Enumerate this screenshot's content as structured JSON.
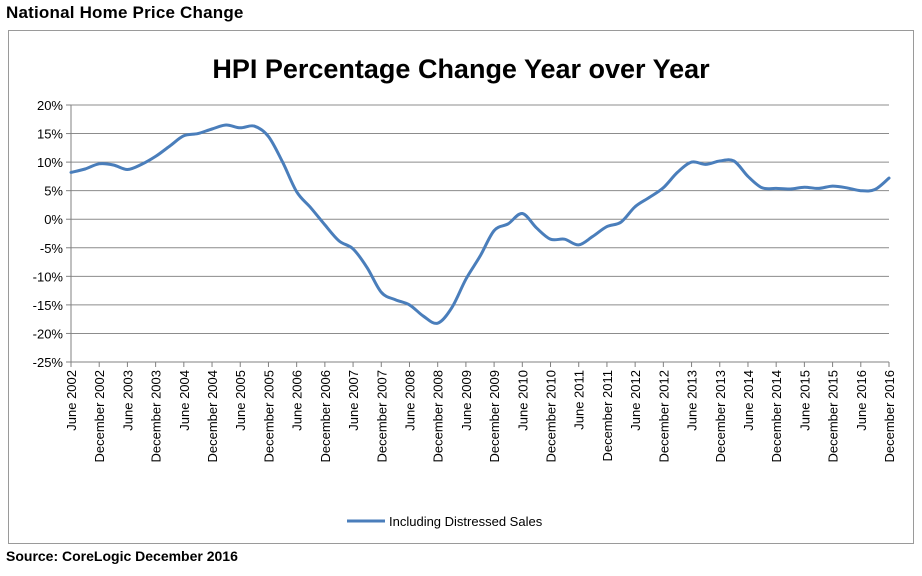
{
  "page": {
    "heading": "National  Home  Price  Change",
    "source": "Source: CoreLogic December 2016"
  },
  "colors": {
    "series": "#4a7ebb",
    "grid": "#8c8c8c",
    "axis": "#808080"
  },
  "chart_data": {
    "type": "line",
    "title": "HPI Percentage Change Year over Year",
    "xlabel": "",
    "ylabel": "",
    "ylim": [
      -25,
      20
    ],
    "ytick_step": 5,
    "ytick_labels": [
      "20%",
      "15%",
      "10%",
      "5%",
      "0%",
      "-5%",
      "-10%",
      "-15%",
      "-20%",
      "-25%"
    ],
    "grid": "horizontal",
    "legend_position": "bottom",
    "x_start": "2002-06",
    "x_end": "2016-12",
    "xtick_labels": [
      "June 2002",
      "December 2002",
      "June 2003",
      "December 2003",
      "June 2004",
      "December 2004",
      "June 2005",
      "December 2005",
      "June 2006",
      "December 2006",
      "June 2007",
      "December 2007",
      "June 2008",
      "December 2008",
      "June 2009",
      "December 2009",
      "June 2010",
      "December 2010",
      "June 2011",
      "December 2011",
      "June 2012",
      "December 2012",
      "June 2013",
      "December 2013",
      "June 2014",
      "December 2014",
      "June 2015",
      "December 2015",
      "June 2016",
      "December 2016"
    ],
    "series": [
      {
        "name": "Including Distressed Sales",
        "points": [
          [
            "2002-06",
            8.2
          ],
          [
            "2002-09",
            8.8
          ],
          [
            "2002-12",
            9.7
          ],
          [
            "2003-03",
            9.5
          ],
          [
            "2003-06",
            8.7
          ],
          [
            "2003-09",
            9.6
          ],
          [
            "2003-12",
            11.0
          ],
          [
            "2004-03",
            12.8
          ],
          [
            "2004-06",
            14.6
          ],
          [
            "2004-09",
            15.0
          ],
          [
            "2004-12",
            15.8
          ],
          [
            "2005-03",
            16.5
          ],
          [
            "2005-06",
            16.0
          ],
          [
            "2005-09",
            16.3
          ],
          [
            "2005-12",
            14.5
          ],
          [
            "2006-03",
            10.0
          ],
          [
            "2006-06",
            4.8
          ],
          [
            "2006-09",
            2.0
          ],
          [
            "2006-12",
            -1.0
          ],
          [
            "2007-03",
            -3.8
          ],
          [
            "2007-06",
            -5.2
          ],
          [
            "2007-09",
            -8.5
          ],
          [
            "2007-12",
            -12.8
          ],
          [
            "2008-03",
            -14.1
          ],
          [
            "2008-06",
            -15.0
          ],
          [
            "2008-09",
            -17.0
          ],
          [
            "2008-12",
            -18.2
          ],
          [
            "2009-03",
            -15.5
          ],
          [
            "2009-06",
            -10.5
          ],
          [
            "2009-09",
            -6.5
          ],
          [
            "2009-12",
            -2.0
          ],
          [
            "2010-03",
            -0.8
          ],
          [
            "2010-06",
            1.0
          ],
          [
            "2010-09",
            -1.5
          ],
          [
            "2010-12",
            -3.5
          ],
          [
            "2011-03",
            -3.5
          ],
          [
            "2011-06",
            -4.5
          ],
          [
            "2011-09",
            -3.0
          ],
          [
            "2011-12",
            -1.3
          ],
          [
            "2012-03",
            -0.5
          ],
          [
            "2012-06",
            2.2
          ],
          [
            "2012-09",
            3.8
          ],
          [
            "2012-12",
            5.5
          ],
          [
            "2013-03",
            8.2
          ],
          [
            "2013-06",
            10.0
          ],
          [
            "2013-09",
            9.6
          ],
          [
            "2013-12",
            10.2
          ],
          [
            "2014-03",
            10.2
          ],
          [
            "2014-06",
            7.5
          ],
          [
            "2014-09",
            5.5
          ],
          [
            "2014-12",
            5.4
          ],
          [
            "2015-03",
            5.3
          ],
          [
            "2015-06",
            5.6
          ],
          [
            "2015-09",
            5.4
          ],
          [
            "2015-12",
            5.8
          ],
          [
            "2016-03",
            5.5
          ],
          [
            "2016-06",
            5.0
          ],
          [
            "2016-09",
            5.2
          ],
          [
            "2016-12",
            7.2
          ]
        ]
      }
    ]
  }
}
